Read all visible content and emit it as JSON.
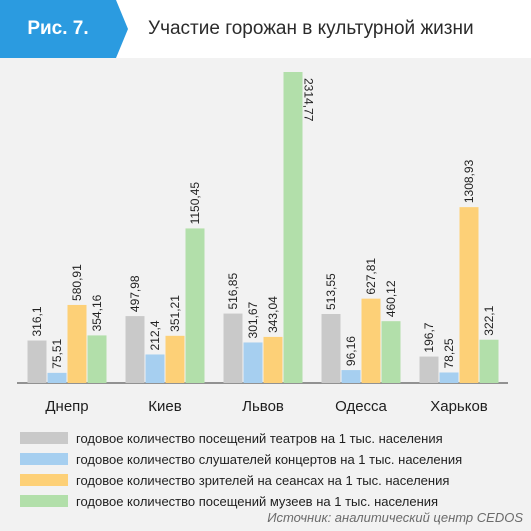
{
  "figure_label": "Рис. 7.",
  "title": "Участие горожан в культурной жизни",
  "source": "Источник: аналитический центр CEDOS",
  "colors": {
    "label_bg": "#2b9be0",
    "panel_bg": "#f2f2f2"
  },
  "chart_data": {
    "type": "bar",
    "title": "Участие горожан в культурной жизни",
    "categories": [
      "Днепр",
      "Киев",
      "Львов",
      "Одесса",
      "Харьков"
    ],
    "series": [
      {
        "name": "годовое количество посещений театров на 1 тыс. населения",
        "color": "#c9c9c9",
        "values": [
          316.1,
          497.98,
          516.85,
          513.55,
          196.7
        ],
        "labels": [
          "316,1",
          "497,98",
          "516,85",
          "513,55",
          "196,7"
        ]
      },
      {
        "name": "годовое количество слушателей концертов на 1 тыс. населения",
        "color": "#a6cff0",
        "values": [
          75.51,
          212.4,
          301.67,
          96.16,
          78.25
        ],
        "labels": [
          "75,51",
          "212,4",
          "301,67",
          "96,16",
          "78,25"
        ]
      },
      {
        "name": "годовое количество зрителей на сеансах на 1 тыс. населения",
        "color": "#fdd077",
        "values": [
          580.91,
          351.21,
          343.04,
          627.81,
          1308.93
        ],
        "labels": [
          "580,91",
          "351,21",
          "343,04",
          "627,81",
          "1308,93"
        ]
      },
      {
        "name": "годовое количество посещений музеев на 1 тыс. населения",
        "color": "#b2dfaa",
        "values": [
          354.16,
          1150.45,
          2314.77,
          460.12,
          322.1
        ],
        "labels": [
          "354,16",
          "1150,45",
          "2314,77",
          "460,12",
          "322,1"
        ]
      }
    ],
    "ylim": [
      0,
      2314.77
    ],
    "grid": false,
    "legend": "bottom"
  }
}
